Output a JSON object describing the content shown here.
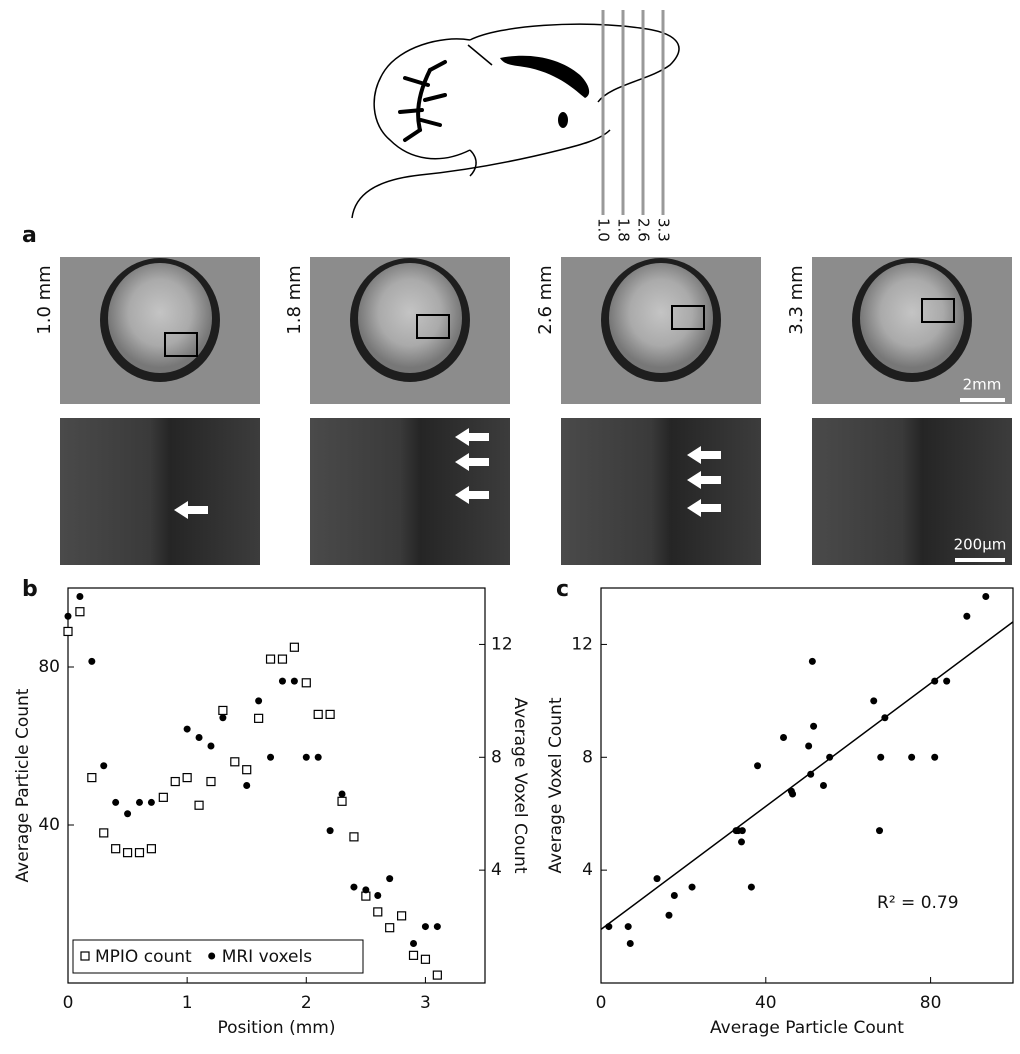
{
  "figure": {
    "panel_labels": [
      "a",
      "b",
      "c"
    ],
    "slices": [
      "1.0 mm",
      "1.8 mm",
      "2.6 mm",
      "3.3 mm"
    ],
    "line_labels": [
      "1.0",
      "1.8",
      "2.6",
      "3.3"
    ],
    "scale_bars": [
      "2mm",
      "200µm"
    ]
  },
  "chart_data": [
    {
      "type": "scatter",
      "xlabel": "Position (mm)",
      "ylabel": "Average Particle Count",
      "y2label": "Average Voxel Count",
      "x": [
        0,
        0.1,
        0.2,
        0.3,
        0.4,
        0.5,
        0.6,
        0.7,
        0.8,
        0.9,
        1.0,
        1.1,
        1.2,
        1.3,
        1.4,
        1.5,
        1.6,
        1.7,
        1.8,
        1.9,
        2.0,
        2.1,
        2.2,
        2.3,
        2.4,
        2.5,
        2.6,
        2.7,
        2.8,
        2.9,
        3.0,
        3.1
      ],
      "xlim": [
        0,
        3.5
      ],
      "xticks": [
        0,
        1,
        2,
        3
      ],
      "ylim": [
        0,
        100
      ],
      "yticks": [
        40,
        80
      ],
      "y2lim": [
        0,
        14
      ],
      "y2ticks": [
        4,
        8,
        12
      ],
      "legend": "lower left",
      "series": [
        {
          "name": "MPIO count",
          "marker": "square",
          "color": "#000000",
          "values": [
            89,
            94,
            52,
            38,
            34,
            33,
            33,
            34,
            47,
            51,
            52,
            45,
            51,
            69,
            56,
            54,
            67,
            82,
            82,
            85,
            76,
            68,
            68,
            46,
            37,
            22,
            18,
            14,
            17,
            7,
            6,
            2
          ]
        },
        {
          "name": "MRI voxels",
          "marker": "circle",
          "color": "#000000",
          "axis": "y2",
          "values": [
            13.0,
            13.7,
            11.4,
            7.7,
            6.4,
            6.0,
            6.4,
            6.4,
            null,
            null,
            9.0,
            8.7,
            8.4,
            9.4,
            null,
            7.0,
            10.0,
            8.0,
            10.7,
            10.7,
            8.0,
            8.0,
            5.4,
            6.7,
            3.4,
            3.3,
            3.1,
            3.7,
            null,
            1.4,
            2.0,
            2.0
          ]
        }
      ]
    },
    {
      "type": "scatter",
      "xlabel": "Average Particle Count",
      "ylabel": "Average Voxel Count",
      "xlim": [
        0,
        100
      ],
      "xticks": [
        0,
        40,
        80
      ],
      "ylim": [
        0,
        14
      ],
      "yticks": [
        4,
        8,
        12
      ],
      "color": "#000000",
      "x": [
        1.9,
        6.6,
        7.1,
        13.6,
        16.5,
        17.8,
        22.1,
        32.8,
        33.3,
        34.1,
        34.3,
        36.5,
        38,
        44.3,
        46.2,
        46.5,
        50.4,
        50.9,
        51.3,
        51.6,
        54,
        55.5,
        66.2,
        67.6,
        67.9,
        68.9,
        75.4,
        81,
        81,
        83.9,
        88.8,
        93.4
      ],
      "values": [
        2.0,
        2.0,
        1.4,
        3.7,
        2.4,
        3.1,
        3.4,
        5.4,
        5.4,
        5.0,
        5.4,
        3.4,
        7.7,
        8.7,
        6.8,
        6.7,
        8.4,
        7.4,
        11.4,
        9.1,
        7.0,
        8.0,
        10.0,
        5.4,
        8.0,
        9.4,
        8.0,
        8.0,
        10.7,
        10.7,
        13.0,
        13.7
      ],
      "fit": {
        "x": [
          0,
          100
        ],
        "y": [
          1.9,
          12.8
        ]
      },
      "annotation": "R² = 0.79"
    }
  ]
}
